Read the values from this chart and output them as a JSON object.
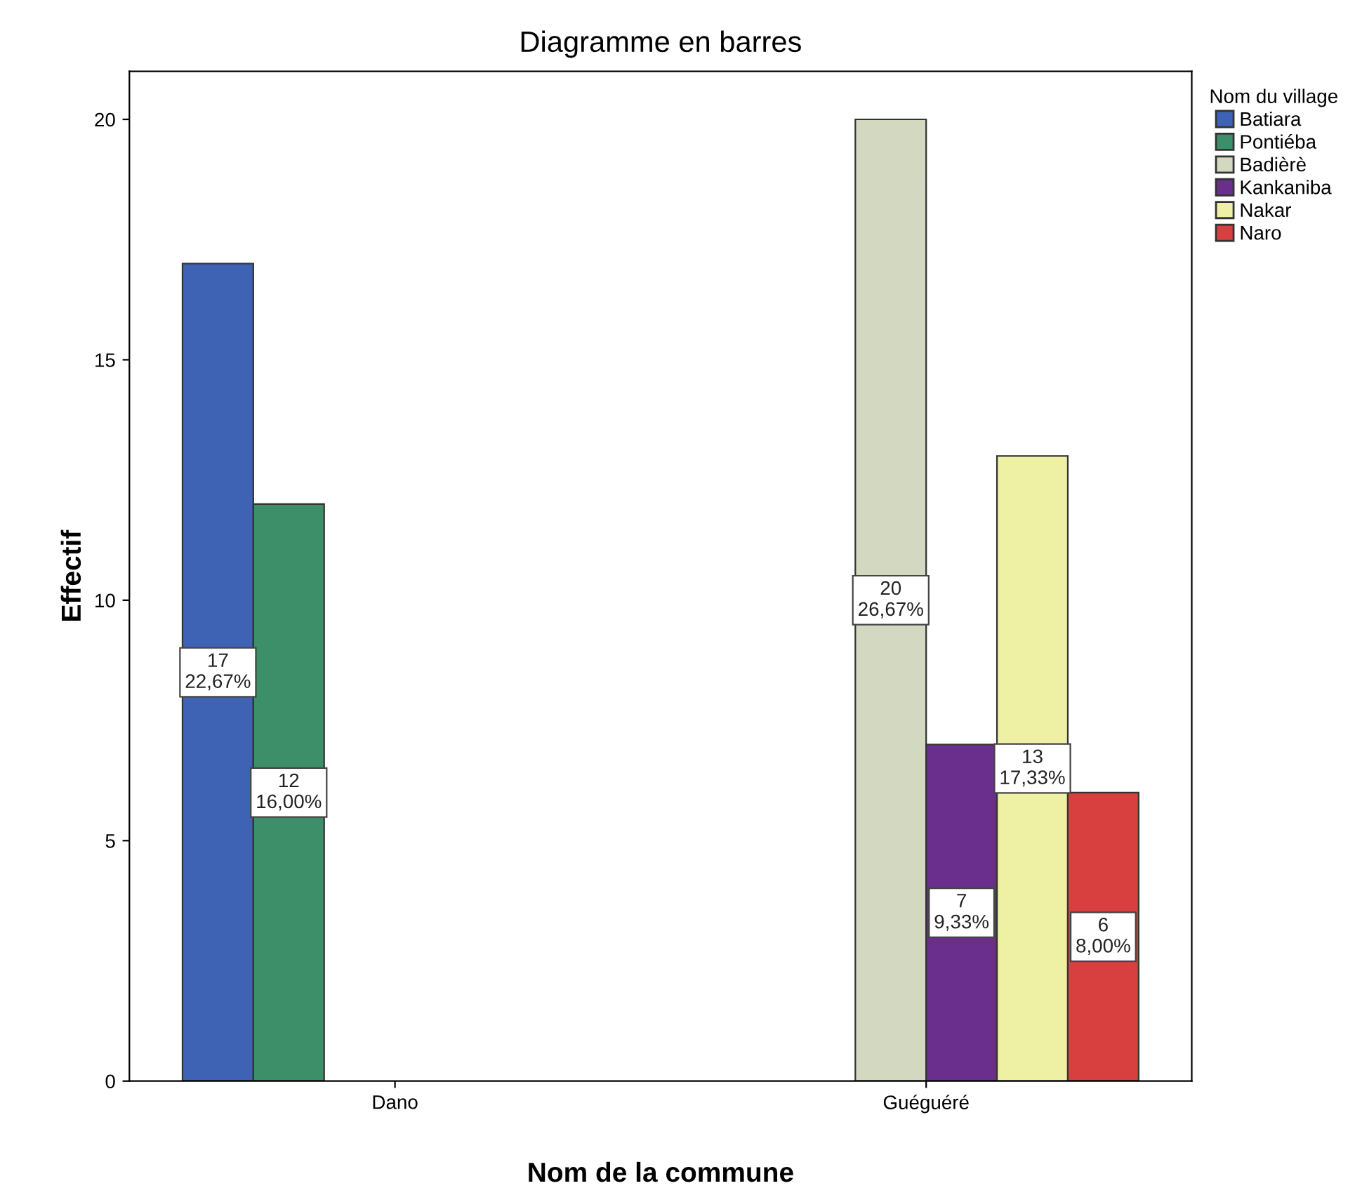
{
  "chart_data": {
    "type": "bar",
    "title": "Diagramme en barres",
    "xlabel": "Nom de la commune",
    "ylabel": "Effectif",
    "legend_title": "Nom du village",
    "categories": [
      "Dano",
      "Guéguéré"
    ],
    "series": [
      {
        "name": "Batiara",
        "color": "#3e62b4",
        "values": [
          17,
          null
        ],
        "value_labels": [
          "17\n22,67%",
          null
        ]
      },
      {
        "name": "Pontiéba",
        "color": "#3d8f6a",
        "values": [
          12,
          null
        ],
        "value_labels": [
          "12\n16,00%",
          null
        ]
      },
      {
        "name": "Badièrè",
        "color": "#d3d9c1",
        "values": [
          null,
          20
        ],
        "value_labels": [
          null,
          "20\n26,67%"
        ]
      },
      {
        "name": "Kankaniba",
        "color": "#6a2f8c",
        "values": [
          null,
          7
        ],
        "value_labels": [
          null,
          "7\n9,33%"
        ]
      },
      {
        "name": "Nakar",
        "color": "#eef0a4",
        "values": [
          null,
          13
        ],
        "value_labels": [
          null,
          "13\n17,33%"
        ]
      },
      {
        "name": "Naro",
        "color": "#d84040",
        "values": [
          null,
          6
        ],
        "value_labels": [
          null,
          "6\n8,00%"
        ]
      }
    ],
    "ylim": [
      0,
      21
    ],
    "yticks": [
      0,
      5,
      10,
      15,
      20
    ],
    "grid": false,
    "legend": "top right"
  }
}
